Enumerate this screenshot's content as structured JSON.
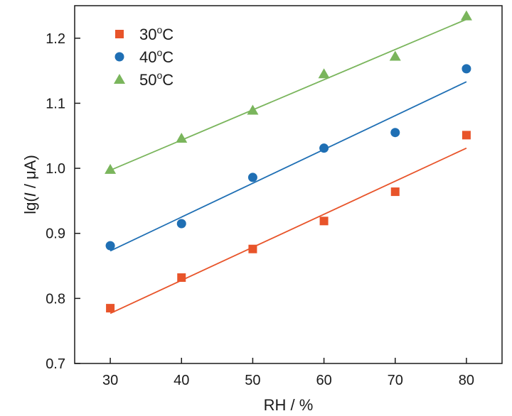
{
  "chart_data": {
    "type": "scatter",
    "title": "",
    "xlabel": "RH / %",
    "ylabel": "lg(I / μA)",
    "ylabel_parts": {
      "pre": "lg(",
      "italic": "I",
      "post": " / μA)"
    },
    "xlim": [
      25,
      85
    ],
    "ylim": [
      0.7,
      1.25
    ],
    "xticks": [
      "30",
      "40",
      "50",
      "60",
      "70",
      "80"
    ],
    "yticks": [
      "0.7",
      "0.8",
      "0.9",
      "1.0",
      "1.1",
      "1.2"
    ],
    "legend_position": "top-left",
    "grid": false,
    "series": [
      {
        "name": "30oC",
        "name_parts": {
          "value": "30",
          "sup": "o",
          "unit": "C"
        },
        "marker": "square",
        "color": "#e8542a",
        "x": [
          30,
          40,
          50,
          60,
          70,
          80
        ],
        "y": [
          0.785,
          0.832,
          0.876,
          0.919,
          0.964,
          1.051
        ],
        "fit": {
          "x": [
            30,
            80
          ],
          "y": [
            0.777,
            1.031
          ]
        }
      },
      {
        "name": "40oC",
        "name_parts": {
          "value": "40",
          "sup": "o",
          "unit": "C"
        },
        "marker": "circle",
        "color": "#1f6fb4",
        "x": [
          30,
          40,
          50,
          60,
          70,
          80
        ],
        "y": [
          0.881,
          0.915,
          0.986,
          1.031,
          1.055,
          1.153
        ],
        "fit": {
          "x": [
            30,
            80
          ],
          "y": [
            0.873,
            1.133
          ]
        }
      },
      {
        "name": "50oC",
        "name_parts": {
          "value": "50",
          "sup": "o",
          "unit": "C"
        },
        "marker": "triangle",
        "color": "#7ab55c",
        "x": [
          30,
          40,
          50,
          60,
          70,
          80
        ],
        "y": [
          0.998,
          1.046,
          1.089,
          1.145,
          1.172,
          1.234
        ],
        "fit": {
          "x": [
            30,
            80
          ],
          "y": [
            0.997,
            1.229
          ]
        }
      }
    ]
  }
}
